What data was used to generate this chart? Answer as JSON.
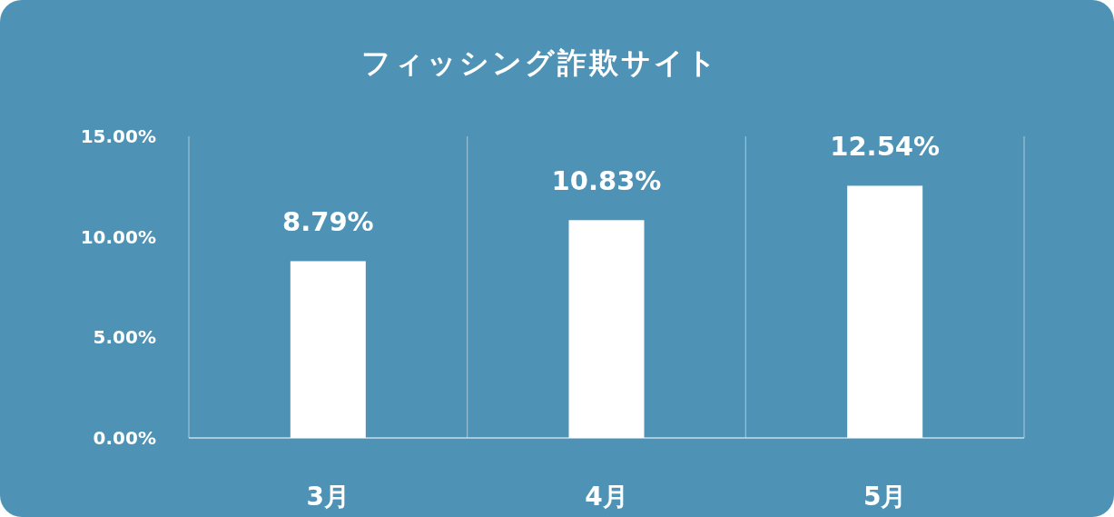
{
  "chart_data": {
    "type": "bar",
    "title": "フィッシング詐欺サイト",
    "categories": [
      "3月",
      "4月",
      "5月"
    ],
    "values": [
      8.79,
      10.83,
      12.54
    ],
    "value_labels": [
      "8.79%",
      "10.83%",
      "12.54%"
    ],
    "color": "#ffffff",
    "ylim": [
      0,
      15
    ],
    "yticks": [
      {
        "value": 0,
        "label": "0.00%"
      },
      {
        "value": 5,
        "label": "5.00%"
      },
      {
        "value": 10,
        "label": "10.00%"
      },
      {
        "value": 15,
        "label": "15.00%"
      }
    ],
    "grid": "x"
  }
}
